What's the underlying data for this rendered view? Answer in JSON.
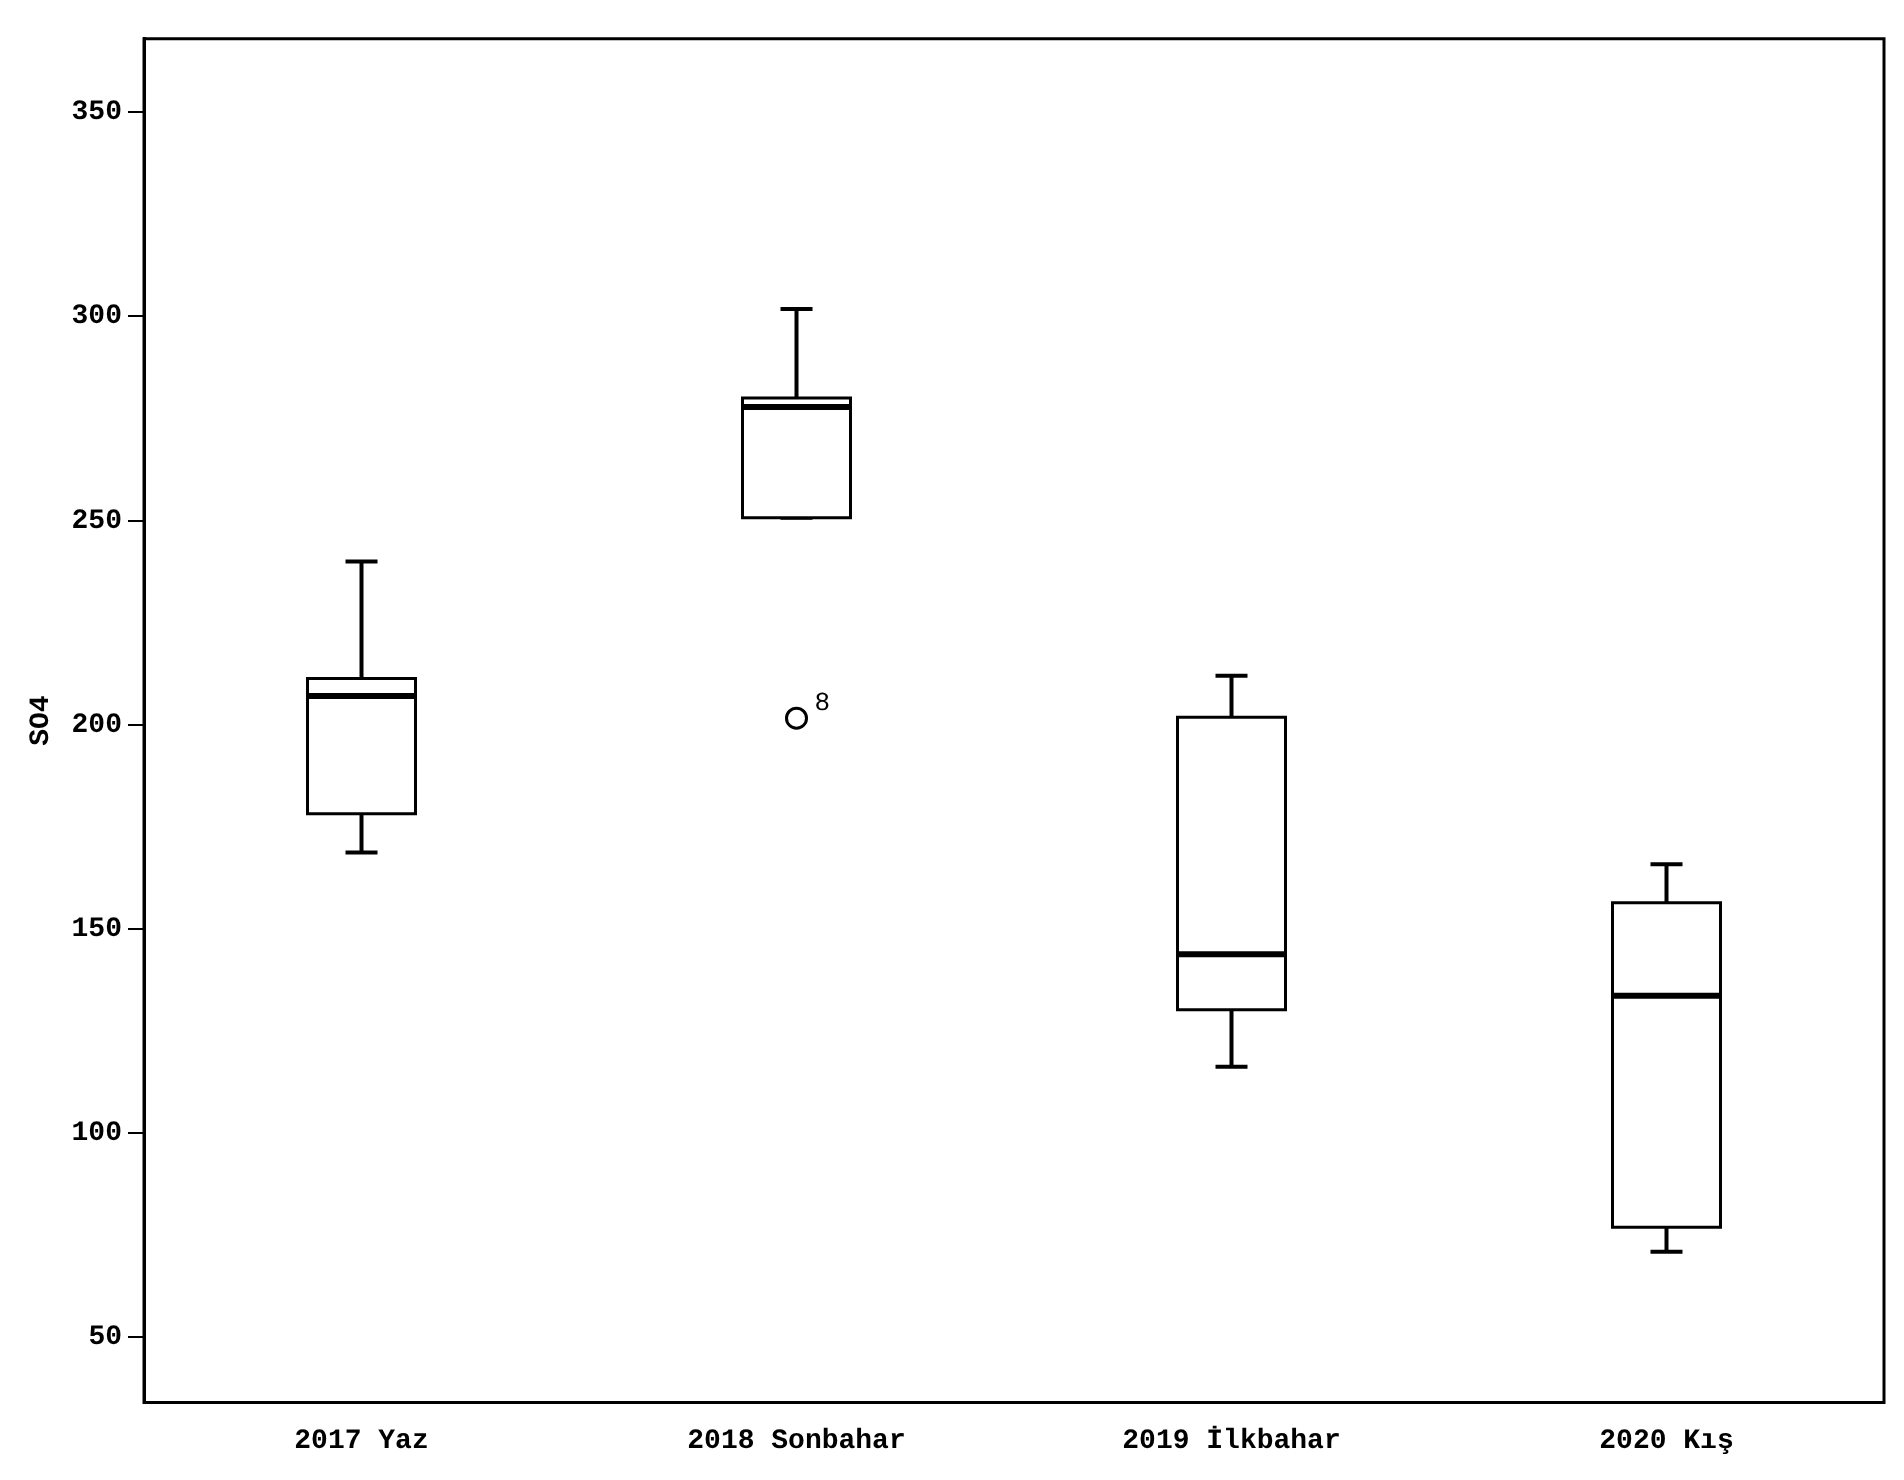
{
  "chart_data": {
    "type": "box",
    "ylabel": "SO4",
    "categories": [
      "2017 Yaz",
      "2018 Sonbahar",
      "2019 İlkbahar",
      "2020 Kış"
    ],
    "boxes": [
      {
        "low": 168.7,
        "q1": 178.2,
        "median": 207,
        "q3": 211.3,
        "high": 240
      },
      {
        "low": 250.7,
        "q1": 250.7,
        "median": 277.8,
        "q3": 280,
        "high": 301.8,
        "outliers": [
          201.6
        ]
      },
      {
        "low": 116.2,
        "q1": 130.2,
        "median": 143.8,
        "q3": 201.8,
        "high": 212
      },
      {
        "low": 70.9,
        "q1": 76.9,
        "median": 133.6,
        "q3": 156.4,
        "high": 165.8
      }
    ],
    "ylim": [
      34,
      368
    ],
    "yticks": [
      50,
      100,
      150,
      200,
      250,
      300,
      350
    ],
    "grid": false,
    "annotations": [
      "8"
    ]
  }
}
